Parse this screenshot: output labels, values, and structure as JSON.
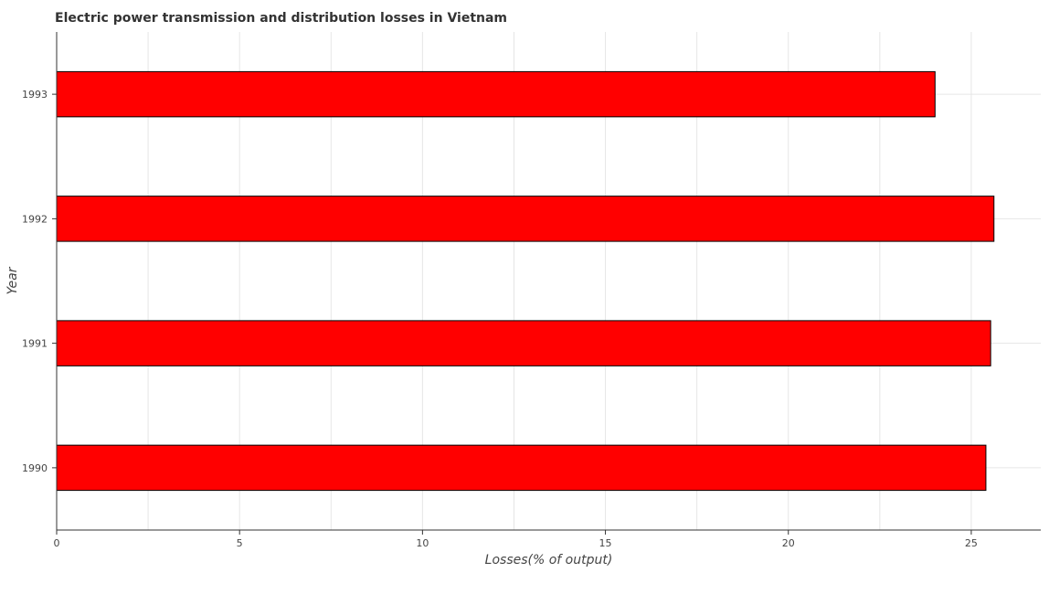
{
  "chart_data": {
    "type": "bar",
    "orientation": "horizontal",
    "title": "Electric power transmission and distribution losses in Vietnam",
    "xlabel": "Losses(% of output)",
    "ylabel": "Year",
    "categories": [
      "1990",
      "1991",
      "1992",
      "1993"
    ],
    "values": [
      25.4,
      25.53,
      25.62,
      24.01
    ],
    "xlim": [
      0,
      26.9
    ],
    "xticks": [
      0,
      5,
      10,
      15,
      20,
      25
    ],
    "xtick_labels": [
      "0",
      "5",
      "10",
      "15",
      "20",
      "25"
    ],
    "grid": true,
    "bar_color": "#ff0000",
    "bar_edge_color": "#000000"
  }
}
